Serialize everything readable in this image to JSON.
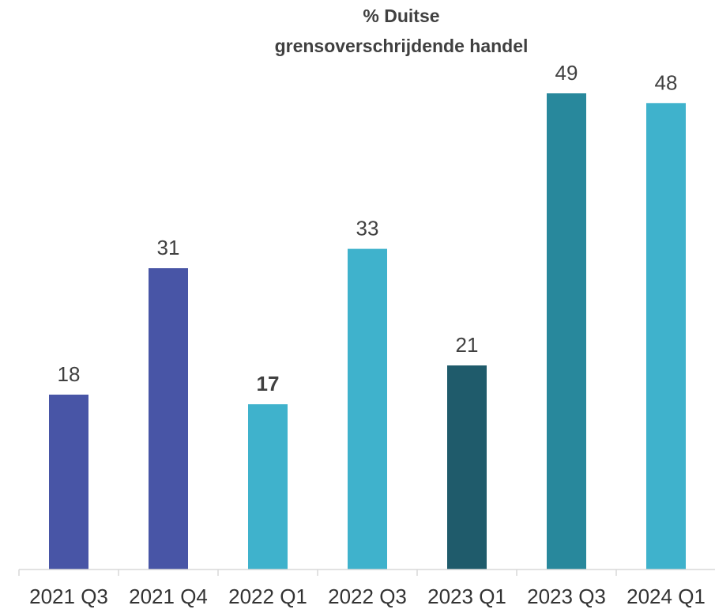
{
  "chart_data": {
    "type": "bar",
    "title": "% Duitse grensoverschrijdende handel",
    "title_lines": [
      "% Duitse",
      "grensoverschrijdende handel"
    ],
    "categories": [
      "2021 Q3",
      "2021 Q4",
      "2022 Q1",
      "2022 Q3",
      "2023 Q1",
      "2023 Q3",
      "2024 Q1"
    ],
    "values": [
      18,
      31,
      17,
      33,
      21,
      49,
      48
    ],
    "bar_colors": [
      "#4855a6",
      "#4855a6",
      "#3fb2cc",
      "#3fb2cc",
      "#1f5b6b",
      "#28889c",
      "#3fb2cc"
    ],
    "bold_labels": [
      false,
      false,
      true,
      false,
      false,
      false,
      false
    ],
    "ylim": [
      0,
      49
    ],
    "xlabel": "",
    "ylabel": "",
    "grid": false,
    "legend": "none"
  }
}
